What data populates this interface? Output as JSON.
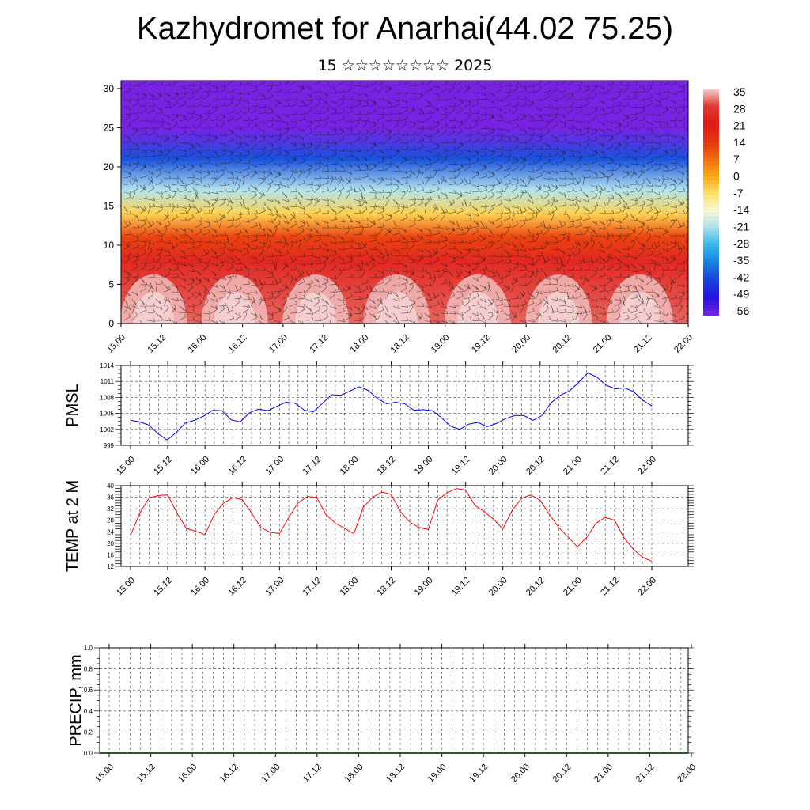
{
  "header": {
    "title": "Kazhydromet for Anarhai(44.02 75.25)",
    "date": "15 ☆☆☆☆☆☆☆☆ 2025"
  },
  "chart_data": [
    {
      "type": "heatmap",
      "title": "",
      "x_tick_labels": [
        "15.00",
        "15.12",
        "16.00",
        "16.12",
        "17.00",
        "17.12",
        "18.00",
        "18.12",
        "19.00",
        "19.12",
        "20.00",
        "20.12",
        "21.00",
        "21.12",
        "22.00"
      ],
      "y_ticks": [
        0,
        5,
        10,
        15,
        20,
        25,
        30
      ],
      "ylim": [
        0,
        31
      ],
      "colorbar": {
        "labels": [
          "35",
          "28",
          "21",
          "14",
          "7",
          "0",
          "-7",
          "-14",
          "-21",
          "-28",
          "-35",
          "-42",
          "-49",
          "-56"
        ],
        "colors": [
          "#f4d2d2",
          "#e23b32",
          "#e21a14",
          "#e83410",
          "#f46a0c",
          "#fba913",
          "#fde26a",
          "#fbfad8",
          "#a8e0ef",
          "#33b4ea",
          "#1680e0",
          "#1a3fdc",
          "#2613e6",
          "#7a22e4"
        ]
      },
      "description_layers": [
        {
          "height": 0,
          "value": 30
        },
        {
          "height": 8,
          "value": 24
        },
        {
          "height": 11,
          "value": 12
        },
        {
          "height": 14,
          "value": -5
        },
        {
          "height": 17,
          "value": -20
        },
        {
          "height": 21,
          "value": -40
        },
        {
          "height": 25,
          "value": -56
        },
        {
          "height": 31,
          "value": -62
        }
      ],
      "overlay": "wind barbs"
    },
    {
      "type": "line",
      "ylabel": "PMSL",
      "ylim": [
        999,
        1014
      ],
      "y_ticks": [
        "999",
        "1002",
        "1005",
        "1008",
        "1011",
        "1014"
      ],
      "x_tick_labels": [
        "15.00",
        "15.12",
        "16.00",
        "16.12",
        "17.00",
        "17.12",
        "18.00",
        "18.12",
        "19.00",
        "19.12",
        "20.00",
        "20.12",
        "21.00",
        "21.12",
        "22.00"
      ],
      "series": [
        {
          "color": "#0000ff",
          "values": [
            1003.7,
            1003.4,
            1002.8,
            1001.2,
            1000.0,
            1001.4,
            1003.2,
            1003.7,
            1004.5,
            1005.6,
            1005.5,
            1003.8,
            1003.4,
            1005.1,
            1005.8,
            1005.5,
            1006.3,
            1007.1,
            1006.9,
            1005.6,
            1005.3,
            1006.9,
            1008.5,
            1008.4,
            1009.2,
            1010.0,
            1009.3,
            1007.8,
            1006.8,
            1007.1,
            1006.8,
            1005.6,
            1005.7,
            1005.5,
            1004.2,
            1002.6,
            1002.0,
            1003.0,
            1003.3,
            1002.5,
            1003.1,
            1004.0,
            1004.6,
            1004.6,
            1003.7,
            1004.6,
            1007.0,
            1008.4,
            1009.2,
            1010.8,
            1012.6,
            1011.8,
            1010.3,
            1009.6,
            1009.8,
            1009.1,
            1007.5,
            1006.4
          ]
        }
      ]
    },
    {
      "type": "line",
      "ylabel": "TEMP at 2 M",
      "ylim": [
        12,
        40
      ],
      "y_ticks": [
        "12",
        "16",
        "20",
        "24",
        "28",
        "32",
        "36",
        "40"
      ],
      "x_tick_labels": [
        "15.00",
        "15.12",
        "16.00",
        "16.12",
        "17.00",
        "17.12",
        "18.00",
        "18.12",
        "19.00",
        "19.12",
        "20.00",
        "20.12",
        "21.00",
        "21.12",
        "22.00"
      ],
      "series": [
        {
          "color": "#ff0000",
          "values": [
            22.8,
            30.5,
            35.8,
            36.6,
            36.8,
            30.5,
            25.2,
            24.2,
            23.0,
            30.0,
            34.0,
            35.8,
            35.2,
            30.5,
            25.5,
            23.8,
            23.4,
            29.0,
            34.0,
            36.3,
            35.9,
            30.0,
            27.0,
            25.2,
            23.3,
            32.5,
            36.0,
            37.8,
            37.0,
            31.0,
            27.4,
            25.5,
            24.8,
            35.0,
            37.5,
            39.0,
            38.5,
            33.2,
            31.0,
            28.4,
            25.0,
            31.5,
            35.6,
            36.8,
            35.0,
            30.0,
            25.5,
            22.2,
            18.8,
            22.0,
            27.0,
            29.0,
            28.0,
            22.0,
            18.0,
            15.2,
            13.8
          ]
        }
      ]
    },
    {
      "type": "bar",
      "ylabel": "PRECIP, mm",
      "ylim": [
        0.0,
        1.0
      ],
      "y_ticks": [
        "0.0",
        "0.2",
        "0.4",
        "0.6",
        "0.8",
        "1.0"
      ],
      "x_tick_labels": [
        "15.00",
        "15.12",
        "16.00",
        "16.12",
        "17.00",
        "17.12",
        "18.00",
        "18.12",
        "19.00",
        "19.12",
        "20.00",
        "20.12",
        "21.00",
        "21.12",
        "22.00"
      ],
      "values": []
    }
  ]
}
